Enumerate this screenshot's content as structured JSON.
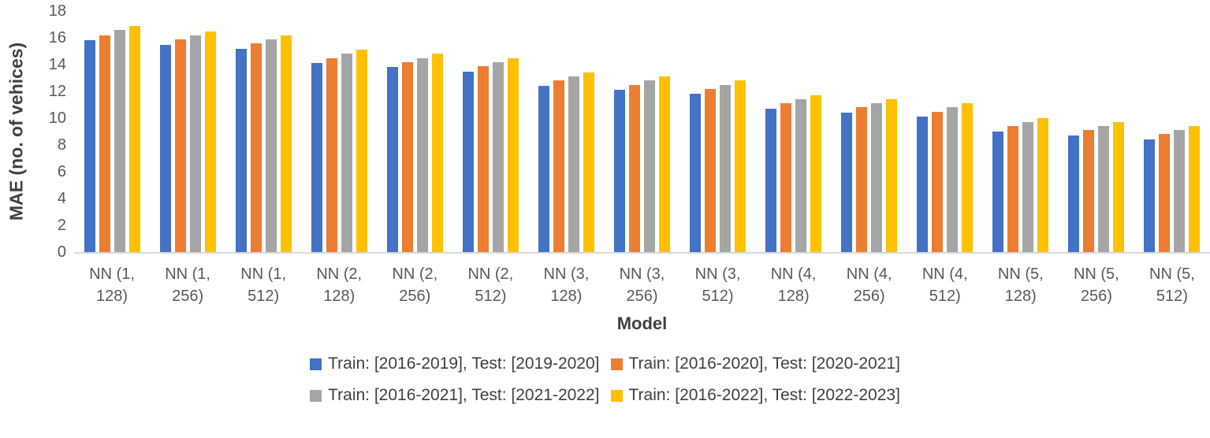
{
  "chart_data": {
    "type": "bar",
    "title": "",
    "xlabel": "Model",
    "ylabel": "MAE (no. of vehices)",
    "ylim": [
      0,
      18
    ],
    "ytick_step": 2,
    "y_ticks": [
      18,
      16,
      14,
      12,
      10,
      8,
      6,
      4,
      2,
      0
    ],
    "grid": false,
    "legend_position": "bottom",
    "categories": [
      "NN (1, 128)",
      "NN (1, 256)",
      "NN (1, 512)",
      "NN (2, 128)",
      "NN (2, 256)",
      "NN (2, 512)",
      "NN (3, 128)",
      "NN (3, 256)",
      "NN (3, 512)",
      "NN (4, 128)",
      "NN (4, 256)",
      "NN (4, 512)",
      "NN (5, 128)",
      "NN (5, 256)",
      "NN (5, 512)"
    ],
    "category_label_lines": [
      [
        "NN (1,",
        "128)"
      ],
      [
        "NN (1,",
        "256)"
      ],
      [
        "NN (1,",
        "512)"
      ],
      [
        "NN (2,",
        "128)"
      ],
      [
        "NN (2,",
        "256)"
      ],
      [
        "NN (2,",
        "512)"
      ],
      [
        "NN (3,",
        "128)"
      ],
      [
        "NN (3,",
        "256)"
      ],
      [
        "NN (3,",
        "512)"
      ],
      [
        "NN (4,",
        "128)"
      ],
      [
        "NN (4,",
        "256)"
      ],
      [
        "NN (4,",
        "512)"
      ],
      [
        "NN (5,",
        "128)"
      ],
      [
        "NN (5,",
        "256)"
      ],
      [
        "NN (5,",
        "512)"
      ]
    ],
    "series": [
      {
        "name": "Train: [2016-2019], Test: [2019-2020]",
        "color": "#4472c4",
        "values": [
          15.8,
          15.5,
          15.2,
          14.1,
          13.8,
          13.5,
          12.4,
          12.1,
          11.8,
          10.7,
          10.4,
          10.1,
          9.0,
          8.7,
          8.4
        ]
      },
      {
        "name": "Train: [2016-2020], Test: [2020-2021]",
        "color": "#ed7d31",
        "values": [
          16.2,
          15.9,
          15.6,
          14.5,
          14.2,
          13.9,
          12.8,
          12.5,
          12.2,
          11.1,
          10.8,
          10.5,
          9.4,
          9.1,
          8.8
        ]
      },
      {
        "name": "Train: [2016-2021], Test: [2021-2022]",
        "color": "#a5a5a5",
        "values": [
          16.6,
          16.2,
          15.9,
          14.8,
          14.5,
          14.2,
          13.1,
          12.8,
          12.5,
          11.4,
          11.1,
          10.8,
          9.7,
          9.4,
          9.1
        ]
      },
      {
        "name": "Train: [2016-2022], Test: [2022-2023]",
        "color": "#ffc000",
        "values": [
          16.9,
          16.5,
          16.2,
          15.1,
          14.8,
          14.5,
          13.4,
          13.1,
          12.8,
          11.7,
          11.4,
          11.1,
          10.0,
          9.7,
          9.4
        ]
      }
    ],
    "colors": {
      "axis_line": "#d9d9d9",
      "tick_text": "#595959",
      "axis_title_text": "#404040"
    }
  }
}
